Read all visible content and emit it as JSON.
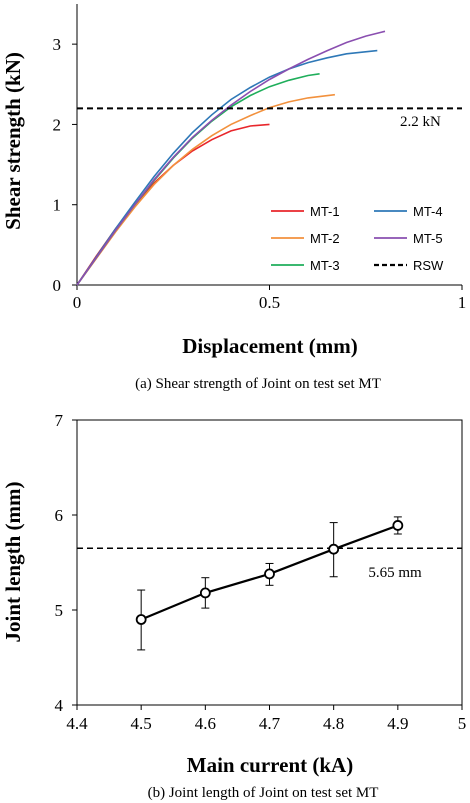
{
  "chart_data": [
    {
      "type": "line",
      "caption": "(a) Shear strength of Joint on test set MT",
      "xlabel": "Displacement (mm)",
      "ylabel": "Shear strength (kN)",
      "xlim": [
        0,
        1
      ],
      "ylim": [
        0,
        3.5
      ],
      "xticks": [
        "0",
        "0.5",
        "1"
      ],
      "yticks": [
        "0",
        "1",
        "2",
        "3"
      ],
      "grid": false,
      "legend_position": "bottom-right",
      "series": [
        {
          "name": "MT-1",
          "color": "#e8262b",
          "style": "solid",
          "x": [
            0,
            0.05,
            0.1,
            0.15,
            0.2,
            0.25,
            0.3,
            0.35,
            0.4,
            0.45,
            0.5
          ],
          "y": [
            0,
            0.36,
            0.7,
            1.0,
            1.27,
            1.49,
            1.67,
            1.81,
            1.92,
            1.98,
            2.0
          ]
        },
        {
          "name": "MT-2",
          "color": "#f2913d",
          "style": "solid",
          "x": [
            0,
            0.05,
            0.1,
            0.15,
            0.2,
            0.25,
            0.3,
            0.35,
            0.4,
            0.45,
            0.5,
            0.55,
            0.6,
            0.67
          ],
          "y": [
            0,
            0.33,
            0.66,
            0.97,
            1.25,
            1.49,
            1.69,
            1.86,
            2.0,
            2.11,
            2.21,
            2.28,
            2.33,
            2.37
          ]
        },
        {
          "name": "MT-3",
          "color": "#1fae5b",
          "style": "solid",
          "x": [
            0,
            0.05,
            0.1,
            0.15,
            0.2,
            0.25,
            0.3,
            0.35,
            0.4,
            0.45,
            0.5,
            0.55,
            0.6,
            0.63
          ],
          "y": [
            0,
            0.34,
            0.68,
            1.0,
            1.3,
            1.58,
            1.83,
            2.04,
            2.22,
            2.36,
            2.47,
            2.55,
            2.61,
            2.63
          ]
        },
        {
          "name": "MT-4",
          "color": "#2e78b7",
          "style": "solid",
          "x": [
            0,
            0.05,
            0.1,
            0.15,
            0.2,
            0.25,
            0.3,
            0.35,
            0.4,
            0.45,
            0.5,
            0.55,
            0.6,
            0.65,
            0.7,
            0.78
          ],
          "y": [
            0,
            0.35,
            0.7,
            1.03,
            1.35,
            1.64,
            1.9,
            2.12,
            2.31,
            2.46,
            2.59,
            2.69,
            2.77,
            2.83,
            2.88,
            2.92
          ]
        },
        {
          "name": "MT-5",
          "color": "#8a4fb0",
          "style": "solid",
          "x": [
            0,
            0.05,
            0.1,
            0.15,
            0.2,
            0.25,
            0.3,
            0.35,
            0.4,
            0.45,
            0.5,
            0.55,
            0.6,
            0.65,
            0.7,
            0.75,
            0.8
          ],
          "y": [
            0,
            0.34,
            0.68,
            1.0,
            1.31,
            1.59,
            1.84,
            2.05,
            2.24,
            2.41,
            2.56,
            2.69,
            2.81,
            2.92,
            3.02,
            3.1,
            3.16
          ]
        },
        {
          "name": "RSW",
          "color": "#000000",
          "style": "dashed",
          "x": [
            0,
            1
          ],
          "y": [
            2.2,
            2.2
          ]
        }
      ],
      "annotations": [
        {
          "text": "2.2 kN",
          "x": 0.86,
          "y": 2.2
        }
      ]
    },
    {
      "type": "line",
      "caption": "(b) Joint length of Joint on test set MT",
      "xlabel": "Main current (kA)",
      "ylabel": "Joint length (mm)",
      "xlim": [
        4.4,
        5.0
      ],
      "ylim": [
        4,
        7
      ],
      "xticks": [
        "4.4",
        "4.5",
        "4.6",
        "4.7",
        "4.8",
        "4.9",
        "5"
      ],
      "yticks": [
        "4",
        "5",
        "6",
        "7"
      ],
      "grid": false,
      "series": [
        {
          "name": "",
          "color": "#000000",
          "style": "solid-markers",
          "x": [
            4.5,
            4.6,
            4.7,
            4.8,
            4.9
          ],
          "y": [
            4.9,
            5.18,
            5.38,
            5.64,
            5.89
          ],
          "err_low": [
            4.58,
            5.02,
            5.26,
            5.35,
            5.8
          ],
          "err_high": [
            5.21,
            5.34,
            5.49,
            5.92,
            5.98
          ]
        },
        {
          "name": "",
          "color": "#000000",
          "style": "dashed",
          "x": [
            4.4,
            5.0
          ],
          "y": [
            5.65,
            5.65
          ]
        }
      ],
      "annotations": [
        {
          "text": "5.65 mm",
          "x": 4.89,
          "y": 5.52
        }
      ]
    }
  ]
}
